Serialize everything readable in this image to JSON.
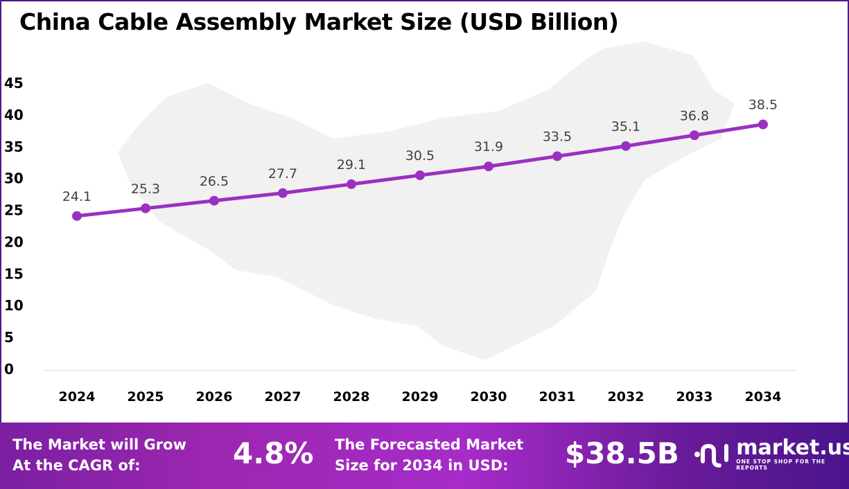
{
  "title": "China Cable Assembly Market Size (USD Billion)",
  "chart_data": {
    "type": "line",
    "title": "China Cable Assembly Market Size (USD Billion)",
    "categories": [
      "2024",
      "2025",
      "2026",
      "2027",
      "2028",
      "2029",
      "2030",
      "2031",
      "2032",
      "2033",
      "2034"
    ],
    "values": [
      24.1,
      25.3,
      26.5,
      27.7,
      29.1,
      30.5,
      31.9,
      33.5,
      35.1,
      36.8,
      38.5
    ],
    "data_labels": [
      "24.1",
      "25.3",
      "26.5",
      "27.7",
      "29.1",
      "30.5",
      "31.9",
      "33.5",
      "35.1",
      "36.8",
      "38.5"
    ],
    "yticks": [
      "0",
      "5",
      "10",
      "15",
      "20",
      "25",
      "30",
      "35",
      "40",
      "45"
    ],
    "ylim": [
      0,
      45
    ],
    "grid": false,
    "line_color": "#9b30c0"
  },
  "footer": {
    "cagr_line1": "The Market will Grow",
    "cagr_line2": "At the CAGR of:",
    "cagr_value": "4.8%",
    "forecast_line1": "The Forecasted Market",
    "forecast_line2": "Size for 2034 in USD:",
    "forecast_value": "$38.5B",
    "brand": "market.us",
    "brand_tagline": "ONE STOP SHOP FOR THE REPORTS"
  }
}
